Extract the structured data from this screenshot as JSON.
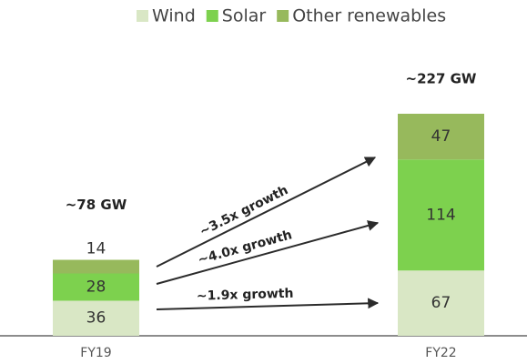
{
  "chart_data": {
    "type": "stacked_bar",
    "categories": [
      "FY19",
      "FY22"
    ],
    "series": [
      {
        "name": "Wind",
        "color": "#d9e7c5",
        "values": [
          36,
          67
        ]
      },
      {
        "name": "Solar",
        "color": "#7dd14e",
        "values": [
          28,
          114
        ]
      },
      {
        "name": "Other renewables",
        "color": "#97b95c",
        "values": [
          14,
          47
        ]
      }
    ],
    "totals": [
      "~78 GW",
      "~227 GW"
    ],
    "annotations": [
      "~3.5x growth",
      "~4.0x growth",
      "~1.9x growth"
    ]
  }
}
